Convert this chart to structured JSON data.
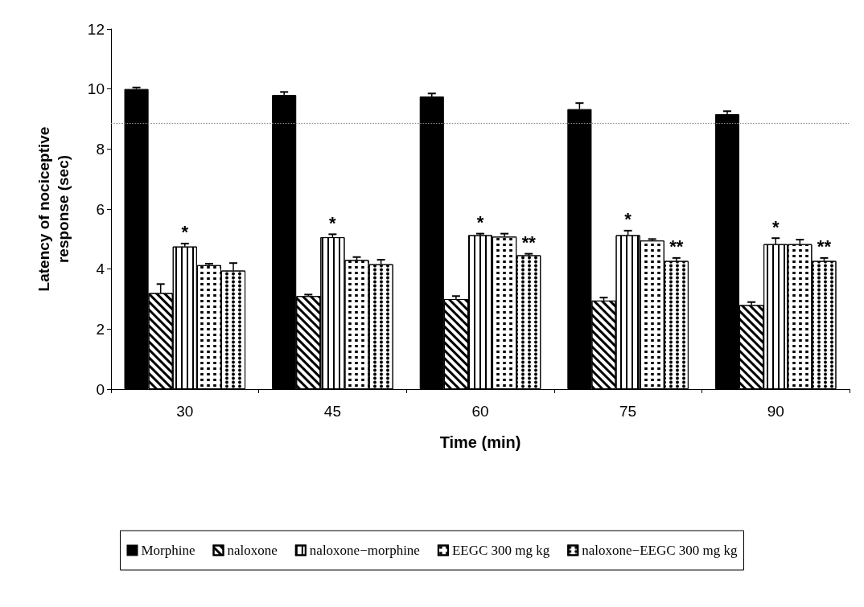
{
  "chart_data": {
    "type": "bar",
    "xlabel": "Time (min)",
    "ylabel": "Latency of nociceptive\nresponse (sec)",
    "categories": [
      "30",
      "45",
      "60",
      "75",
      "90"
    ],
    "series": [
      {
        "name": "Morphine",
        "color": "#000000",
        "values": [
          10.0,
          9.8,
          9.75,
          9.33,
          9.16
        ],
        "errors": [
          0.05,
          0.1,
          0.1,
          0.2,
          0.1
        ]
      },
      {
        "name": "naloxone",
        "color": "#ffffff",
        "values": [
          3.2,
          3.1,
          3.0,
          2.95,
          2.8
        ],
        "errors": [
          0.3,
          0.05,
          0.1,
          0.1,
          0.1
        ]
      },
      {
        "name": "naloxone−morphine",
        "color": "#ffffff",
        "values": [
          4.75,
          5.06,
          5.13,
          5.13,
          4.83
        ],
        "errors": [
          0.1,
          0.1,
          0.05,
          0.15,
          0.2
        ],
        "value_labels": [
          "*",
          "*",
          "*",
          "*",
          "*"
        ]
      },
      {
        "name": "EEGC 300 mg kg",
        "color": "#ffffff",
        "values": [
          4.13,
          4.3,
          5.08,
          4.95,
          4.83
        ],
        "errors": [
          0.05,
          0.1,
          0.1,
          0.05,
          0.15
        ]
      },
      {
        "name": "naloxone−EEGC 300 mg kg",
        "color": "#ffffff",
        "values": [
          3.95,
          4.16,
          4.46,
          4.27,
          4.27
        ],
        "errors": [
          0.25,
          0.15,
          0.05,
          0.1,
          0.1
        ],
        "value_labels": [
          null,
          null,
          "**",
          "**",
          "**"
        ]
      }
    ],
    "ylim": [
      0,
      12
    ],
    "yticks": [
      0,
      2,
      4,
      6,
      8,
      10,
      12
    ],
    "grid": false,
    "legend": "bottom",
    "ref_lines": [
      {
        "axis": "y",
        "value": 8.85,
        "color": "#888888",
        "line_style": "dotted"
      }
    ]
  }
}
